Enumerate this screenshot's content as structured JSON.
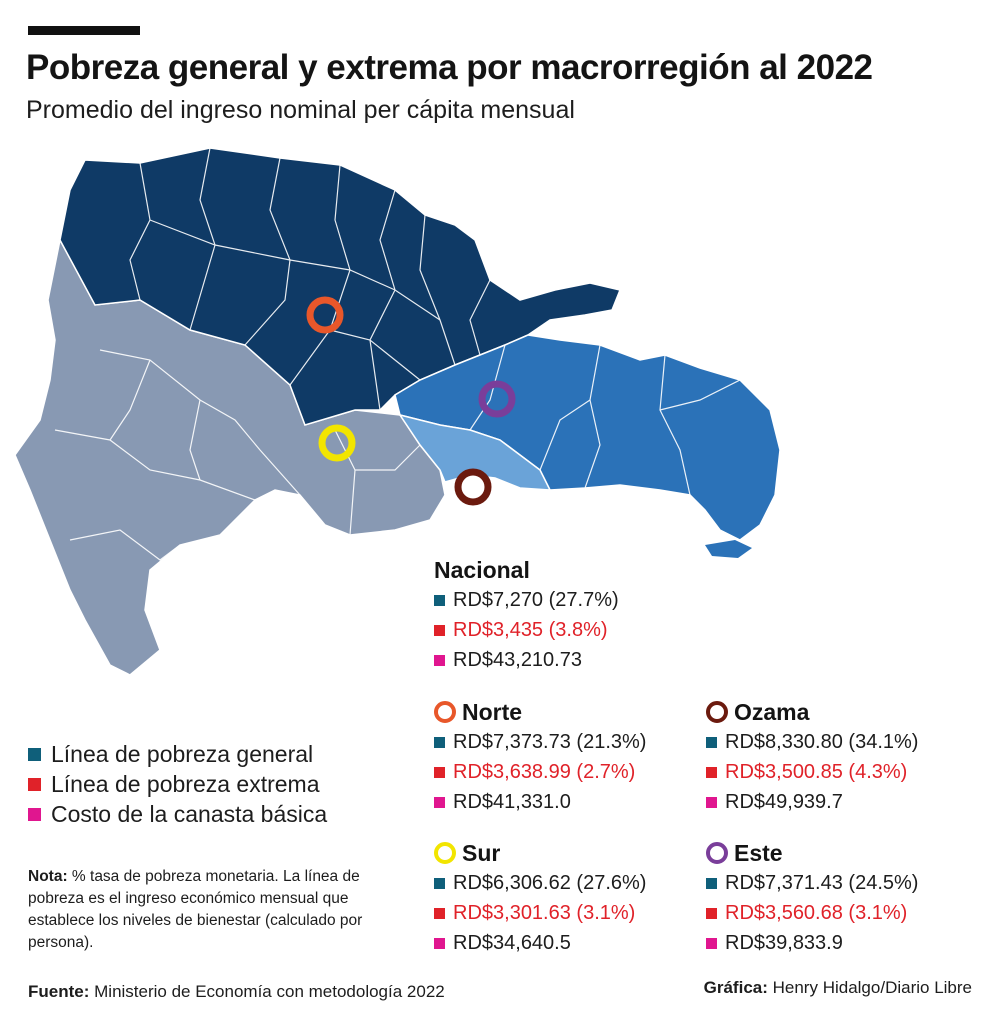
{
  "title": "Pobreza general y extrema por macrorregión al 2022",
  "subtitle": "Promedio del ingreso nominal per cápita mensual",
  "colors": {
    "norte_region": "#0f3a66",
    "sur_region": "#8899b3",
    "este_region": "#2b72b8",
    "ozama_region": "#6aa3d8",
    "norte_ring": "#e8572a",
    "sur_ring": "#f2e500",
    "ozama_ring": "#6b1a0e",
    "este_ring": "#7a3e9a",
    "general_square": "#0f5f7a",
    "extrema_square": "#e02229",
    "canasta_square": "#e0168f"
  },
  "nacional": {
    "name": "Nacional",
    "general": "RD$7,270 (27.7%)",
    "extrema": "RD$3,435 (3.8%)",
    "canasta": "RD$43,210.73"
  },
  "norte": {
    "name": "Norte",
    "general": "RD$7,373.73 (21.3%)",
    "extrema": "RD$3,638.99 (2.7%)",
    "canasta": "RD$41,331.0"
  },
  "ozama": {
    "name": "Ozama",
    "general": "RD$8,330.80 (34.1%)",
    "extrema": "RD$3,500.85 (4.3%)",
    "canasta": "RD$49,939.7"
  },
  "sur": {
    "name": "Sur",
    "general": "RD$6,306.62 (27.6%)",
    "extrema": "RD$3,301.63 (3.1%)",
    "canasta": "RD$34,640.5"
  },
  "este": {
    "name": "Este",
    "general": "RD$7,371.43 (24.5%)",
    "extrema": "RD$3,560.68 (3.1%)",
    "canasta": "RD$39,833.9"
  },
  "legend": {
    "general": "Línea de pobreza general",
    "extrema": "Línea de pobreza extrema",
    "canasta": "Costo de la canasta básica"
  },
  "note": {
    "label": "Nota:",
    "text": "% tasa de pobreza monetaria. La línea de pobreza es el ingreso económico mensual que establece los niveles de bienestar (calculado por persona)."
  },
  "source": {
    "label": "Fuente:",
    "text": "Ministerio de Economía con metodología 2022"
  },
  "credit": {
    "label": "Gráfica:",
    "text": "Henry Hidalgo/Diario Libre"
  }
}
